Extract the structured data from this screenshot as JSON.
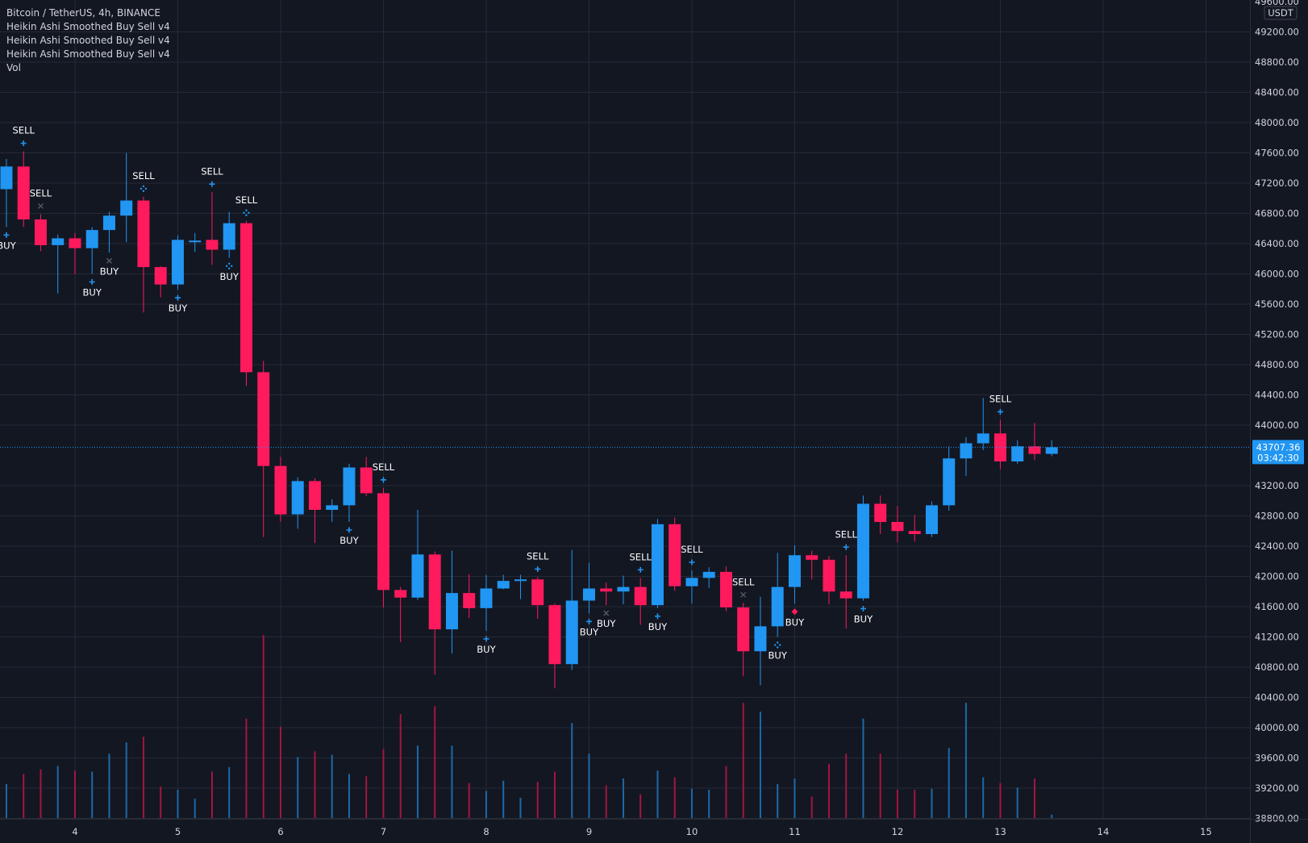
{
  "legend": {
    "symbol_line": "Bitcoin / TetherUS, 4h, BINANCE",
    "indicators": [
      "Heikin Ashi Smoothed Buy Sell v4",
      "Heikin Ashi Smoothed Buy Sell v4",
      "Heikin Ashi Smoothed Buy Sell v4",
      "Vol"
    ]
  },
  "colors": {
    "background": "#131722",
    "up": "#2196f3",
    "down": "#ff1a5e",
    "grid": "#262a36",
    "text": "#d1d4dc",
    "last_price_bg": "#2196f3"
  },
  "chart_data": {
    "type": "candlestick",
    "symbol": "Bitcoin / TetherUS",
    "interval": "4h",
    "exchange": "BINANCE",
    "currency": "USDT",
    "ylim": [
      38800,
      49600
    ],
    "y_ticks": [
      "49200.00",
      "48800.00",
      "48400.00",
      "48000.00",
      "47600.00",
      "47200.00",
      "46800.00",
      "46400.00",
      "46000.00",
      "45600.00",
      "45200.00",
      "44800.00",
      "44400.00",
      "44000.00",
      "43200.00",
      "42800.00",
      "42400.00",
      "42000.00",
      "41600.00",
      "41200.00",
      "40800.00",
      "40400.00",
      "40000.00",
      "39600.00",
      "39200.00",
      "38800.00"
    ],
    "y_top_partial_label": "49600.00",
    "x_ticks": [
      "4",
      "5",
      "6",
      "7",
      "8",
      "9",
      "10",
      "11",
      "12",
      "13",
      "14",
      "15"
    ],
    "x_start_day": 3.333,
    "bar_hours": 4,
    "last_price": "43707.36",
    "countdown": "03:42:30",
    "grid": true,
    "candles": [
      {
        "o": 47120,
        "c": 47420,
        "h": 47520,
        "l": 46620
      },
      {
        "o": 47420,
        "c": 46720,
        "h": 47620,
        "l": 46620
      },
      {
        "o": 46720,
        "c": 46380,
        "h": 46790,
        "l": 46300
      },
      {
        "o": 46380,
        "c": 46470,
        "h": 46520,
        "l": 45740
      },
      {
        "o": 46470,
        "c": 46340,
        "h": 46540,
        "l": 46000
      },
      {
        "o": 46340,
        "c": 46580,
        "h": 46620,
        "l": 46000
      },
      {
        "o": 46580,
        "c": 46770,
        "h": 46820,
        "l": 46280
      },
      {
        "o": 46770,
        "c": 46970,
        "h": 47600,
        "l": 46420
      },
      {
        "o": 46970,
        "c": 46090,
        "h": 47020,
        "l": 45490
      },
      {
        "o": 46090,
        "c": 45860,
        "h": 46100,
        "l": 45690
      },
      {
        "o": 45860,
        "c": 46450,
        "h": 46510,
        "l": 45790
      },
      {
        "o": 46440,
        "c": 46440,
        "h": 46540,
        "l": 46290
      },
      {
        "o": 46450,
        "c": 46320,
        "h": 47080,
        "l": 46120
      },
      {
        "o": 46320,
        "c": 46670,
        "h": 46820,
        "l": 46210
      },
      {
        "o": 46670,
        "c": 44700,
        "h": 46700,
        "l": 44520
      },
      {
        "o": 44700,
        "c": 43460,
        "h": 44850,
        "l": 42520
      },
      {
        "o": 43460,
        "c": 42820,
        "h": 43580,
        "l": 42720
      },
      {
        "o": 42820,
        "c": 43260,
        "h": 43310,
        "l": 42630
      },
      {
        "o": 43260,
        "c": 42880,
        "h": 43300,
        "l": 42440
      },
      {
        "o": 42880,
        "c": 42940,
        "h": 43020,
        "l": 42720
      },
      {
        "o": 42940,
        "c": 43440,
        "h": 43490,
        "l": 42720
      },
      {
        "o": 43440,
        "c": 43100,
        "h": 43580,
        "l": 43060
      },
      {
        "o": 43100,
        "c": 41820,
        "h": 43170,
        "l": 41590
      },
      {
        "o": 41820,
        "c": 41720,
        "h": 41860,
        "l": 41130
      },
      {
        "o": 41720,
        "c": 42290,
        "h": 42880,
        "l": 41690
      },
      {
        "o": 42290,
        "c": 41300,
        "h": 42330,
        "l": 40700
      },
      {
        "o": 41300,
        "c": 41780,
        "h": 42340,
        "l": 40980
      },
      {
        "o": 41780,
        "c": 41580,
        "h": 42030,
        "l": 41450
      },
      {
        "o": 41580,
        "c": 41840,
        "h": 42020,
        "l": 41280
      },
      {
        "o": 41840,
        "c": 41940,
        "h": 42020,
        "l": 41830
      },
      {
        "o": 41940,
        "c": 41960,
        "h": 42020,
        "l": 41700
      },
      {
        "o": 41960,
        "c": 41620,
        "h": 41990,
        "l": 41440
      },
      {
        "o": 41620,
        "c": 40840,
        "h": 41640,
        "l": 40520
      },
      {
        "o": 40840,
        "c": 41680,
        "h": 42350,
        "l": 40760
      },
      {
        "o": 41680,
        "c": 41840,
        "h": 42180,
        "l": 41510
      },
      {
        "o": 41840,
        "c": 41800,
        "h": 41920,
        "l": 41620
      },
      {
        "o": 41800,
        "c": 41860,
        "h": 42010,
        "l": 41630
      },
      {
        "o": 41860,
        "c": 41620,
        "h": 41980,
        "l": 41360
      },
      {
        "o": 41620,
        "c": 42690,
        "h": 42760,
        "l": 41580
      },
      {
        "o": 42690,
        "c": 41870,
        "h": 42780,
        "l": 41810
      },
      {
        "o": 41870,
        "c": 41980,
        "h": 42080,
        "l": 41640
      },
      {
        "o": 41980,
        "c": 42060,
        "h": 42120,
        "l": 41850
      },
      {
        "o": 42060,
        "c": 41590,
        "h": 42130,
        "l": 41540
      },
      {
        "o": 41590,
        "c": 41010,
        "h": 41650,
        "l": 40680
      },
      {
        "o": 41010,
        "c": 41340,
        "h": 41730,
        "l": 40560
      },
      {
        "o": 41340,
        "c": 41860,
        "h": 42310,
        "l": 41200
      },
      {
        "o": 41860,
        "c": 42280,
        "h": 42410,
        "l": 41640
      },
      {
        "o": 42280,
        "c": 42220,
        "h": 42340,
        "l": 41960
      },
      {
        "o": 42220,
        "c": 41800,
        "h": 42270,
        "l": 41630
      },
      {
        "o": 41800,
        "c": 41710,
        "h": 42280,
        "l": 41310
      },
      {
        "o": 41710,
        "c": 42960,
        "h": 43070,
        "l": 41680
      },
      {
        "o": 42960,
        "c": 42720,
        "h": 43070,
        "l": 42560
      },
      {
        "o": 42720,
        "c": 42600,
        "h": 42930,
        "l": 42450
      },
      {
        "o": 42600,
        "c": 42560,
        "h": 42810,
        "l": 42460
      },
      {
        "o": 42560,
        "c": 42940,
        "h": 42990,
        "l": 42520
      },
      {
        "o": 42940,
        "c": 43560,
        "h": 43720,
        "l": 42870
      },
      {
        "o": 43560,
        "c": 43760,
        "h": 43840,
        "l": 43330
      },
      {
        "o": 43760,
        "c": 43890,
        "h": 44360,
        "l": 43670
      },
      {
        "o": 43890,
        "c": 43520,
        "h": 44070,
        "l": 43420
      },
      {
        "o": 43520,
        "c": 43720,
        "h": 43800,
        "l": 43490
      },
      {
        "o": 43720,
        "c": 43620,
        "h": 44030,
        "l": 43540
      },
      {
        "o": 43620,
        "c": 43707,
        "h": 43800,
        "l": 43590
      }
    ],
    "volume": [
      0.3,
      0.39,
      0.43,
      0.46,
      0.42,
      0.41,
      0.57,
      0.67,
      0.72,
      0.28,
      0.25,
      0.17,
      0.41,
      0.45,
      0.88,
      1.62,
      0.81,
      0.54,
      0.59,
      0.56,
      0.39,
      0.37,
      0.61,
      0.92,
      0.64,
      0.99,
      0.64,
      0.31,
      0.24,
      0.33,
      0.18,
      0.32,
      0.41,
      0.84,
      0.57,
      0.29,
      0.35,
      0.21,
      0.42,
      0.36,
      0.26,
      0.25,
      0.46,
      1.02,
      0.94,
      0.3,
      0.35,
      0.19,
      0.48,
      0.57,
      0.88,
      0.57,
      0.25,
      0.25,
      0.26,
      0.62,
      1.02,
      0.36,
      0.31,
      0.27,
      0.35,
      0.03
    ],
    "signals": [
      {
        "bar": 0,
        "type": "BUY",
        "mark": "plus"
      },
      {
        "bar": 1,
        "type": "SELL",
        "mark": "plus"
      },
      {
        "bar": 2,
        "type": "SELL",
        "mark": "x"
      },
      {
        "bar": 5,
        "type": "BUY",
        "mark": "plus"
      },
      {
        "bar": 6,
        "type": "BUY",
        "mark": "x"
      },
      {
        "bar": 8,
        "type": "SELL",
        "mark": "dots"
      },
      {
        "bar": 10,
        "type": "BUY",
        "mark": "plus"
      },
      {
        "bar": 12,
        "type": "SELL",
        "mark": "plus"
      },
      {
        "bar": 13,
        "type": "BUY",
        "mark": "dots"
      },
      {
        "bar": 14,
        "type": "SELL",
        "mark": "dots"
      },
      {
        "bar": 20,
        "type": "BUY",
        "mark": "plus"
      },
      {
        "bar": 22,
        "type": "SELL",
        "mark": "plus"
      },
      {
        "bar": 28,
        "type": "BUY",
        "mark": "plus"
      },
      {
        "bar": 31,
        "type": "SELL",
        "mark": "plus"
      },
      {
        "bar": 34,
        "type": "BUY",
        "mark": "plus"
      },
      {
        "bar": 35,
        "type": "BUY",
        "mark": "x"
      },
      {
        "bar": 37,
        "type": "SELL",
        "mark": "plus"
      },
      {
        "bar": 38,
        "type": "BUY",
        "mark": "plus"
      },
      {
        "bar": 40,
        "type": "SELL",
        "mark": "plus"
      },
      {
        "bar": 43,
        "type": "SELL",
        "mark": "x"
      },
      {
        "bar": 45,
        "type": "BUY",
        "mark": "dots"
      },
      {
        "bar": 46,
        "type": "BUY",
        "mark": "diamond"
      },
      {
        "bar": 49,
        "type": "SELL",
        "mark": "plus"
      },
      {
        "bar": 50,
        "type": "BUY",
        "mark": "plus"
      },
      {
        "bar": 58,
        "type": "SELL",
        "mark": "plus"
      }
    ]
  }
}
